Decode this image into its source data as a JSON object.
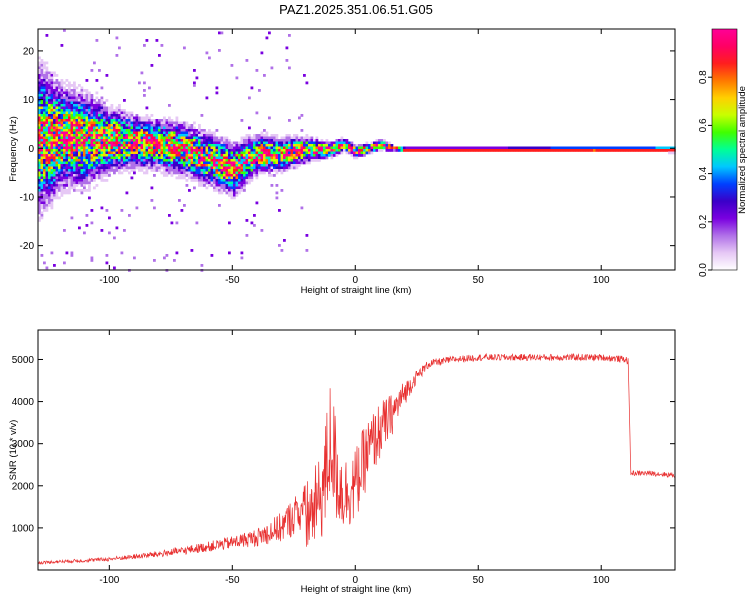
{
  "figure": {
    "title": "PAZ1.2025.351.06.51.G05"
  },
  "chart_data": [
    {
      "type": "heatmap",
      "title": "PAZ1.2025.351.06.51.G05",
      "xlabel": "Height of straight line (km)",
      "ylabel": "Frequency (Hz)",
      "xlim": [
        -129,
        130
      ],
      "ylim": [
        -25,
        24.5
      ],
      "x_ticks": [
        -100,
        -50,
        0,
        50,
        100
      ],
      "x_tick_labels": [
        "-100",
        "-50",
        "0",
        "50",
        "100"
      ],
      "y_ticks": [
        -20,
        -10,
        0,
        10,
        20
      ],
      "y_tick_labels": [
        "-20",
        "-10",
        "0",
        "10",
        "20"
      ],
      "grid": false,
      "ridge": {
        "x": [
          -128,
          -120,
          -110,
          -100,
          -90,
          -80,
          -70,
          -60,
          -50,
          -40,
          -30,
          -20,
          -15,
          -10,
          -5,
          0,
          5,
          10,
          15,
          20,
          30,
          50,
          80,
          110,
          130
        ],
        "freq": [
          2,
          2.5,
          2,
          2,
          1.5,
          1,
          0,
          -2,
          -4,
          -1,
          -1,
          0,
          0,
          0,
          1,
          -0.5,
          0.3,
          1,
          0.3,
          0,
          0,
          0,
          0,
          0,
          0
        ],
        "spread": [
          11,
          8,
          7,
          5,
          4,
          4,
          4,
          4,
          4,
          3,
          2.5,
          2,
          1.5,
          1.2,
          1,
          1,
          0.8,
          0.8,
          0.5,
          0.5,
          0.5,
          0.5,
          0.6,
          0.6,
          0.7
        ]
      },
      "colorbar": {
        "label": "Normalized spectral amplitude",
        "range": [
          0,
          1
        ],
        "ticks": [
          0.0,
          0.2,
          0.4,
          0.6,
          0.8
        ],
        "tick_labels": [
          "0.0",
          "0.2",
          "0.4",
          "0.6",
          "0.8"
        ],
        "colormap": [
          "#ffffff",
          "#e6c8f5",
          "#b070e8",
          "#7a00e0",
          "#3a00c8",
          "#0040ff",
          "#00c8ff",
          "#00ff96",
          "#40ff00",
          "#c8ff00",
          "#ffd000",
          "#ff7800",
          "#ff1e1e",
          "#ff0064",
          "#ff0096"
        ]
      }
    },
    {
      "type": "line",
      "xlabel": "Height of straight line (km)",
      "ylabel": "SNR (10 * v/v)",
      "xlim": [
        -129,
        130
      ],
      "ylim": [
        0,
        5700
      ],
      "x_ticks": [
        -100,
        -50,
        0,
        50,
        100
      ],
      "x_tick_labels": [
        "-100",
        "-50",
        "0",
        "50",
        "100"
      ],
      "y_ticks": [
        1000,
        2000,
        3000,
        4000,
        5000
      ],
      "y_tick_labels": [
        "1000",
        "2000",
        "3000",
        "4000",
        "5000"
      ],
      "grid": false,
      "series": [
        {
          "color": "#e83030",
          "x": [
            -129,
            -120,
            -110,
            -100,
            -90,
            -80,
            -70,
            -60,
            -50,
            -40,
            -30,
            -25,
            -20,
            -15,
            -12,
            -10,
            -8,
            -5,
            0,
            5,
            10,
            15,
            20,
            25,
            30,
            40,
            50,
            60,
            70,
            80,
            90,
            100,
            110,
            111,
            112,
            120,
            130
          ],
          "y": [
            150,
            180,
            200,
            230,
            280,
            330,
            400,
            480,
            560,
            650,
            800,
            1000,
            1200,
            1600,
            2200,
            3200,
            2400,
            1800,
            2000,
            2800,
            3300,
            3700,
            4200,
            4600,
            4900,
            5000,
            5050,
            5050,
            5050,
            5050,
            5050,
            5050,
            5000,
            4950,
            2300,
            2300,
            2250
          ],
          "noise": [
            60,
            60,
            70,
            80,
            100,
            130,
            160,
            200,
            260,
            350,
            600,
            800,
            900,
            1000,
            1400,
            1500,
            1300,
            900,
            900,
            800,
            700,
            500,
            300,
            150,
            100,
            80,
            80,
            80,
            80,
            80,
            80,
            80,
            80,
            80,
            60,
            60,
            60
          ]
        }
      ]
    }
  ]
}
